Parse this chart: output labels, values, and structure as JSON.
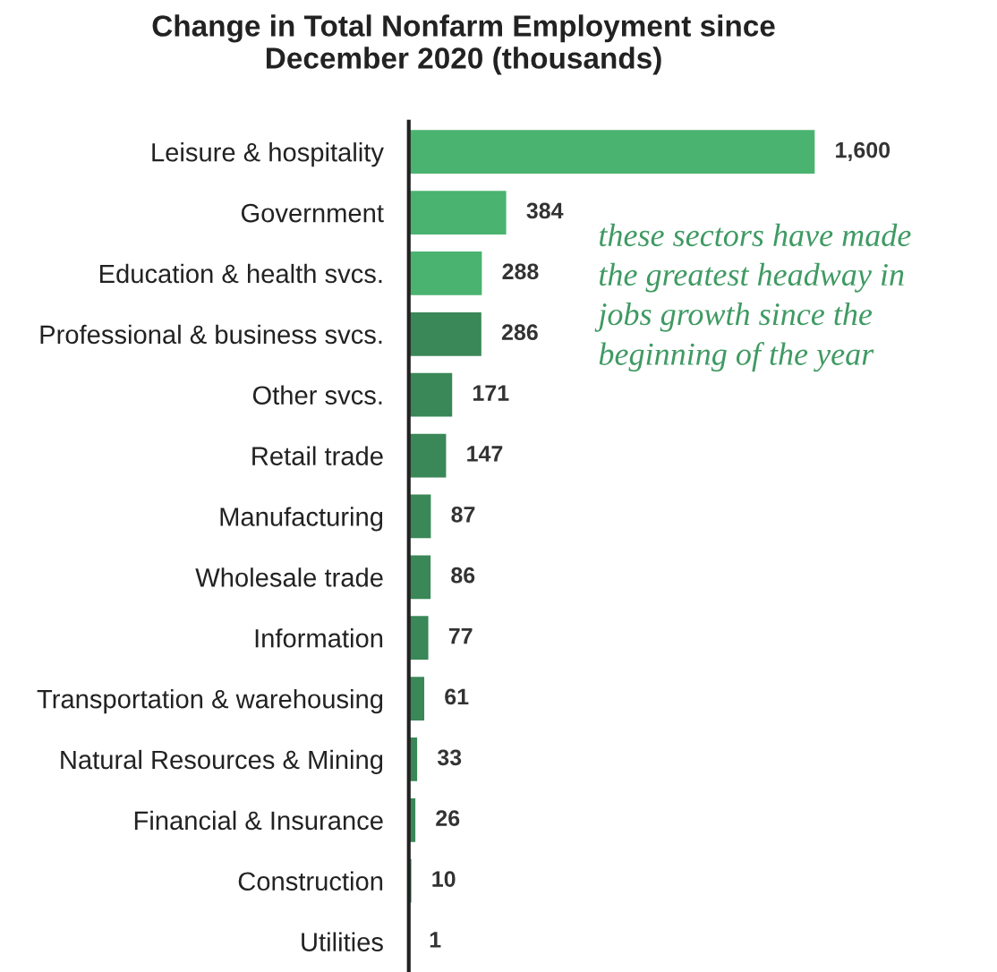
{
  "chart_data": {
    "type": "bar",
    "orientation": "horizontal",
    "title": "Change in Total Nonfarm Employment since\nDecember 2020 (thousands)",
    "categories": [
      "Leisure & hospitality",
      "Government",
      "Education & health svcs.",
      "Professional & business svcs.",
      "Other svcs.",
      "Retail trade",
      "Manufacturing",
      "Wholesale trade",
      "Information",
      "Transportation & warehousing",
      "Natural Resources & Mining",
      "Financial & Insurance",
      "Construction",
      "Utilities"
    ],
    "values": [
      1600,
      384,
      288,
      286,
      171,
      147,
      87,
      86,
      77,
      61,
      33,
      26,
      10,
      1
    ],
    "value_labels": [
      "1,600",
      "384",
      "288",
      "286",
      "171",
      "147",
      "87",
      "86",
      "77",
      "61",
      "33",
      "26",
      "10",
      "1"
    ],
    "colors": [
      "#4ab36f",
      "#4ab36f",
      "#4ab36f",
      "#3a8757",
      "#3a8757",
      "#3a8757",
      "#3a8757",
      "#3a8757",
      "#3a8757",
      "#3a8757",
      "#3a8757",
      "#3a8757",
      "#3a8757",
      "#3a8757"
    ],
    "annotations": [
      "these sectors have made\nthe greatest headway in\njobs growth since the\nbeginning of the year"
    ],
    "grid": false,
    "legend": false
  }
}
